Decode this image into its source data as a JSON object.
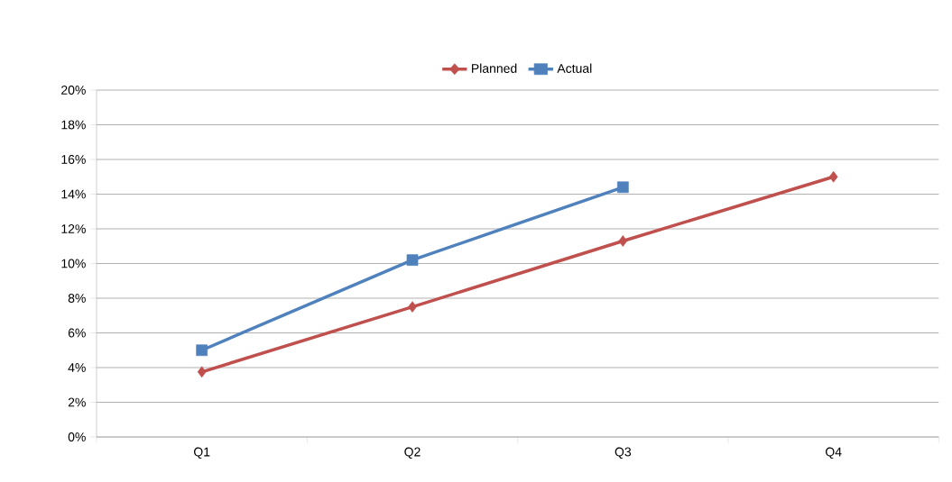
{
  "chart_data": {
    "type": "line",
    "categories": [
      "Q1",
      "Q2",
      "Q3",
      "Q4"
    ],
    "series": [
      {
        "name": "Planned",
        "color": "#c0504d",
        "marker": "diamond",
        "values": [
          3.75,
          7.5,
          11.3,
          15
        ]
      },
      {
        "name": "Actual",
        "color": "#4f81bd",
        "marker": "square",
        "values": [
          5,
          10.2,
          14.4,
          null
        ]
      }
    ],
    "ylim": [
      0,
      20
    ],
    "yticks": [
      {
        "value": 0,
        "label": "0%"
      },
      {
        "value": 2,
        "label": "2%"
      },
      {
        "value": 4,
        "label": "4%"
      },
      {
        "value": 6,
        "label": "6%"
      },
      {
        "value": 8,
        "label": "8%"
      },
      {
        "value": 10,
        "label": "10%"
      },
      {
        "value": 12,
        "label": "12%"
      },
      {
        "value": 14,
        "label": "14%"
      },
      {
        "value": 16,
        "label": "16%"
      },
      {
        "value": 18,
        "label": "18%"
      },
      {
        "value": 20,
        "label": "20%"
      }
    ],
    "grid": "y",
    "legend": "top",
    "line_style": "solid"
  }
}
